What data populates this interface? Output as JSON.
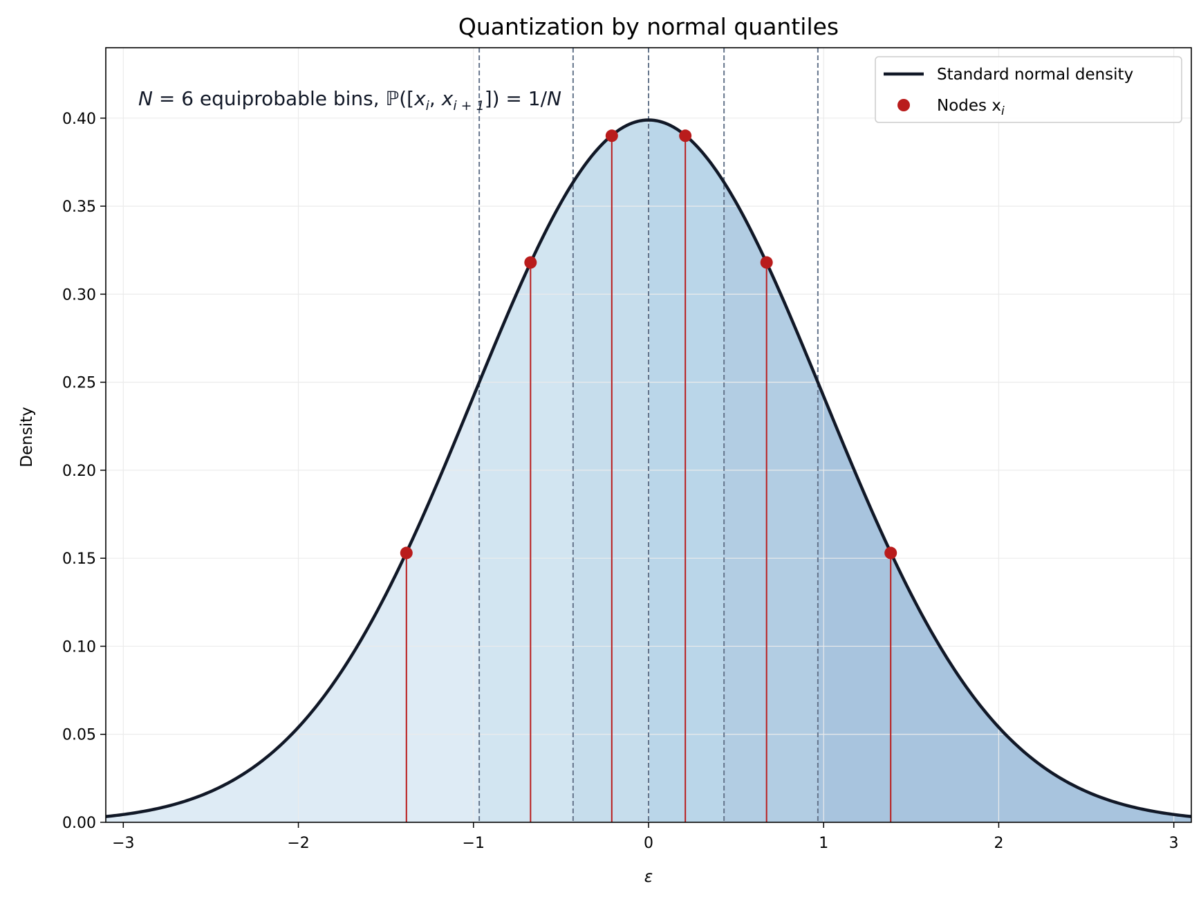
{
  "chart_data": {
    "type": "area",
    "title": "Quantization by normal quantiles",
    "xlabel": "ε",
    "ylabel": "Density",
    "xlim": [
      -3.1,
      3.1
    ],
    "ylim": [
      0,
      0.44
    ],
    "xticks": [
      -3,
      -2,
      -1,
      0,
      1,
      2,
      3
    ],
    "xtick_labels": [
      "−3",
      "−2",
      "−1",
      "0",
      "1",
      "2",
      "3"
    ],
    "yticks": [
      0.0,
      0.05,
      0.1,
      0.15,
      0.2,
      0.25,
      0.3,
      0.35,
      0.4
    ],
    "ytick_labels": [
      "0.00",
      "0.05",
      "0.10",
      "0.15",
      "0.20",
      "0.25",
      "0.30",
      "0.35",
      "0.40"
    ],
    "grid": true,
    "legend_position": "top-right",
    "annotation": {
      "prefix": "N",
      "middle": " = 6 equiprobable bins, ",
      "prob_symbol": "ℙ",
      "interval_open": "([",
      "x": "x",
      "sub_i": "i",
      "comma": ", ",
      "sub_i1": "i + 1",
      "interval_close": "]) = 1/",
      "suffix": "N"
    },
    "series": [
      {
        "name": "Standard normal density",
        "kind": "line",
        "color": "#111827",
        "function": "standard normal pdf"
      },
      {
        "name": "Nodes x",
        "name_subscript": "i",
        "kind": "scatter",
        "color": "#b91c1c",
        "x": [
          -1.383,
          -0.674,
          -0.21,
          0.21,
          0.674,
          1.383
        ],
        "y": [
          0.153,
          0.318,
          0.39,
          0.39,
          0.318,
          0.153
        ]
      }
    ],
    "bin_edges": [
      -0.967,
      -0.431,
      0.0,
      0.431,
      0.967
    ],
    "bin_fill_colors": [
      "#deebf5",
      "#d2e5f1",
      "#c6ddec",
      "#bad6e9",
      "#b2cde3",
      "#a8c4de"
    ],
    "colors": {
      "curve": "#111827",
      "nodes": "#b91c1c",
      "dashed": "#64748b",
      "grid": "#ebebeb"
    }
  }
}
